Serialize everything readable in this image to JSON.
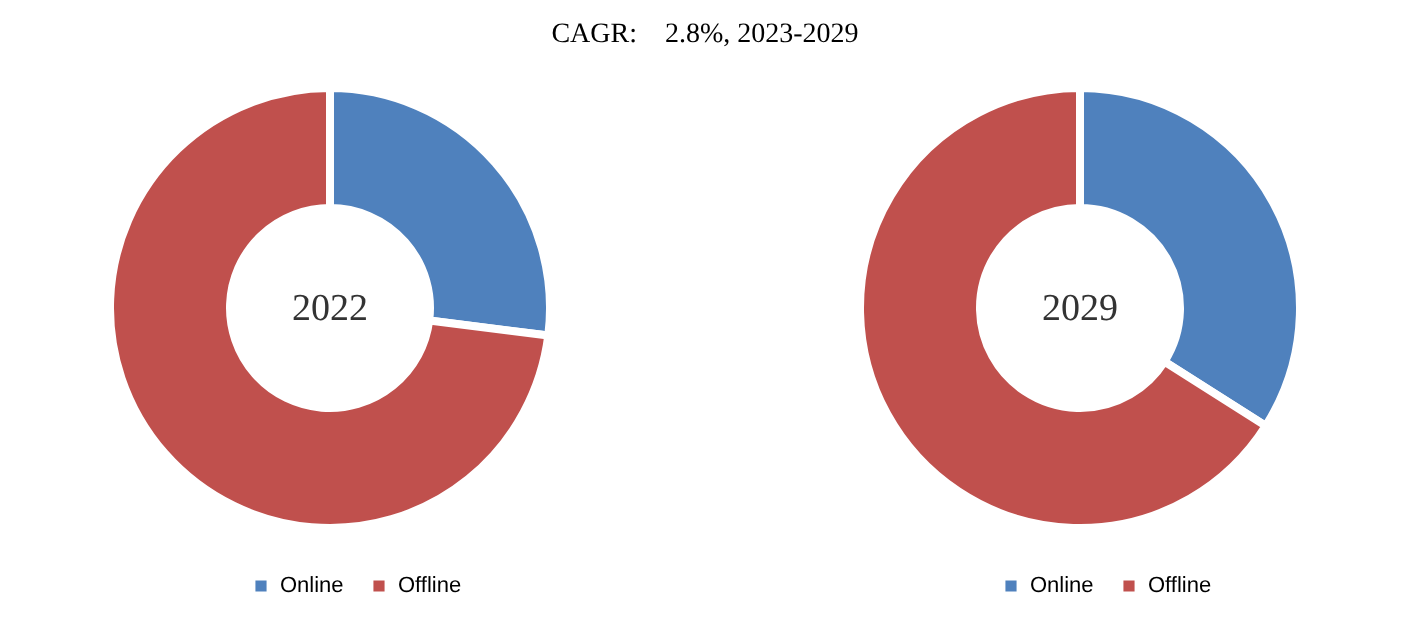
{
  "chart_data": [
    {
      "type": "donut",
      "title": "CAGR:    2.8%, 2023-2029",
      "categories": [
        "Online",
        "Offline"
      ],
      "values": [
        27,
        73
      ],
      "colors": [
        "#4f81bd",
        "#c0504d"
      ],
      "annotations": [
        "2022"
      ],
      "legend": "bottom"
    },
    {
      "type": "donut",
      "categories": [
        "Online",
        "Offline"
      ],
      "values": [
        34,
        66
      ],
      "colors": [
        "#4f81bd",
        "#c0504d"
      ],
      "annotations": [
        "2029"
      ],
      "legend": "bottom"
    }
  ]
}
